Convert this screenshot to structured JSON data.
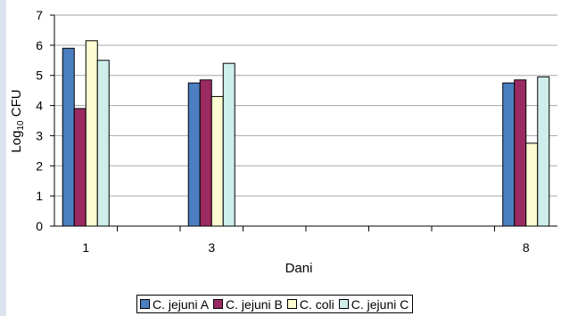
{
  "chart_data": {
    "type": "bar",
    "categories": [
      "1",
      "3",
      "8"
    ],
    "x_positions": [
      1,
      3,
      8
    ],
    "xlim": [
      0.5,
      8.5
    ],
    "series": [
      {
        "name": "C. jejuni A",
        "color": "#4b7fc0",
        "values": [
          5.9,
          4.75,
          4.75
        ]
      },
      {
        "name": "C. jejuni B",
        "color": "#9c2a62",
        "values": [
          3.9,
          4.85,
          4.85
        ]
      },
      {
        "name": "C. coli",
        "color": "#fcfbd2",
        "values": [
          6.15,
          4.3,
          2.75
        ]
      },
      {
        "name": "C. jejuni C",
        "color": "#cdeeeb",
        "values": [
          5.5,
          5.4,
          4.95
        ]
      }
    ],
    "xlabel": "Dani",
    "ylabel_main": "Log",
    "ylabel_sub": "10",
    "ylabel_suffix": " CFU",
    "ylim": [
      0,
      7
    ],
    "yticks": [
      "0",
      "1",
      "2",
      "3",
      "4",
      "5",
      "6",
      "7"
    ],
    "grid": true,
    "legend_position": "bottom"
  }
}
